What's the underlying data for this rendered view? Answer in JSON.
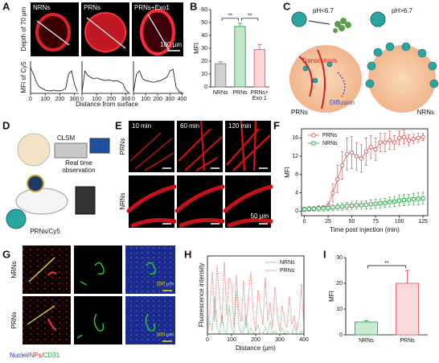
{
  "panel_labels": [
    "A",
    "B",
    "C",
    "D",
    "E",
    "F",
    "G",
    "H",
    "I"
  ],
  "A": {
    "images": [
      "NRNs",
      "PRNs",
      "PRNs+Exo1"
    ],
    "scale": "100 μm",
    "depth": "Depth of 70 μm",
    "ylabel": "MFI of Cy5",
    "xlabel": "Distance from surface"
  },
  "C": {
    "ph_left": "pH<6.7",
    "ph_right": "pH>6.7",
    "transcytosis": "Transcytosis",
    "diffusion": "Diffusion",
    "left": "PRNs",
    "right": "NRNs"
  },
  "D": {
    "microscope": "CLSM",
    "observation": "Real time\nobservation",
    "probe": "PRNs/Cy5"
  },
  "E": {
    "times": [
      "10 min",
      "60 min",
      "120 min"
    ],
    "rows": [
      "PRNs",
      "NRNs"
    ],
    "scale": "50 μm"
  },
  "G": {
    "rows": [
      "NRNs",
      "PRNs"
    ],
    "scale": "100 μm",
    "channels": [
      "Nuclei/",
      "NPs/",
      "CD31"
    ]
  },
  "chart_data": [
    {
      "type": "line",
      "frame": "axes",
      "color": "#111111",
      "xlim": [
        0,
        330
      ],
      "ylim": [
        0,
        100
      ],
      "xticks": [
        0,
        100,
        200,
        300
      ],
      "x": [
        0,
        20,
        40,
        60,
        80,
        100,
        120,
        140,
        160,
        180,
        200,
        220,
        240,
        260,
        280,
        300,
        320
      ],
      "values": [
        80,
        60,
        35,
        20,
        15,
        10,
        8,
        8,
        10,
        8,
        8,
        10,
        15,
        60,
        70,
        30,
        5
      ]
    },
    {
      "type": "line",
      "frame": "axes",
      "color": "#111111",
      "xlim": [
        0,
        330
      ],
      "ylim": [
        0,
        100
      ],
      "xticks": [
        0,
        100,
        200,
        300
      ],
      "x": [
        0,
        20,
        40,
        60,
        80,
        100,
        120,
        140,
        160,
        180,
        200,
        220,
        240,
        260,
        280,
        300,
        320
      ],
      "values": [
        5,
        70,
        55,
        50,
        45,
        48,
        45,
        42,
        40,
        42,
        40,
        38,
        40,
        35,
        30,
        10,
        2
      ]
    },
    {
      "type": "line",
      "frame": "axes",
      "color": "#111111",
      "xlim": [
        0,
        410
      ],
      "ylim": [
        0,
        100
      ],
      "xticks": [
        0,
        100,
        200,
        300,
        400
      ],
      "x": [
        0,
        25,
        50,
        75,
        100,
        125,
        150,
        175,
        200,
        225,
        250,
        275,
        300,
        325,
        350,
        375,
        400
      ],
      "values": [
        5,
        60,
        70,
        45,
        40,
        38,
        35,
        35,
        38,
        40,
        45,
        50,
        70,
        75,
        20,
        5,
        2
      ]
    },
    {
      "type": "bar",
      "frame": "axes",
      "categories": [
        "NRNs",
        "PRNs",
        "PRNs+\nExo 1"
      ],
      "values": [
        18,
        47,
        29
      ],
      "errors": [
        1.5,
        2.5,
        4
      ],
      "colors": [
        "#d0d0d0",
        "#bfe6c8",
        "#fbd6d6"
      ],
      "edge_colors": [
        "#808080",
        "#3aa655",
        "#e06070"
      ],
      "ylim": [
        0,
        60
      ],
      "yticks": [
        0,
        10,
        20,
        30,
        40,
        50,
        60
      ],
      "ylabel": "MFI",
      "annotations": [
        {
          "text": "**",
          "from": 0,
          "to": 1
        },
        {
          "text": "**",
          "from": 1,
          "to": 2
        }
      ]
    },
    {
      "type": "line",
      "frame": "box",
      "xlim": [
        -3,
        130
      ],
      "ylim": [
        -1,
        18
      ],
      "xticks": [
        0,
        25,
        50,
        75,
        100,
        125
      ],
      "yticks": [
        0,
        4,
        8,
        12,
        16
      ],
      "xlabel": "Time post injection (min)",
      "ylabel": "MFI",
      "legend": "upper left",
      "x": [
        0,
        5,
        10,
        15,
        20,
        25,
        30,
        35,
        40,
        45,
        50,
        55,
        60,
        65,
        70,
        75,
        80,
        85,
        90,
        95,
        100,
        105,
        110,
        115,
        120,
        125
      ],
      "series": [
        {
          "name": "PRNs",
          "color": "#d9534f",
          "marker": "circle",
          "values": [
            0.5,
            0.5,
            0.6,
            0.7,
            0.8,
            1.2,
            4,
            7,
            10,
            12.5,
            12.8,
            12,
            11.5,
            13,
            14,
            13.5,
            15,
            15,
            15.5,
            15,
            16,
            16.2,
            15.5,
            15.8,
            16,
            16.2
          ],
          "errors": [
            0.3,
            0.3,
            0.3,
            0.4,
            0.4,
            0.8,
            2,
            3,
            3,
            3.5,
            3.5,
            3,
            3,
            3,
            2.5,
            2.5,
            2,
            2,
            2,
            1.5,
            1.5,
            1.5,
            1.2,
            1,
            1,
            0.8
          ]
        },
        {
          "name": "NRNs",
          "color": "#3aa655",
          "marker": "square",
          "values": [
            0.4,
            0.5,
            0.5,
            0.6,
            0.6,
            0.7,
            0.8,
            0.9,
            1,
            1.1,
            1.2,
            1.3,
            1.3,
            1.4,
            1.5,
            1.6,
            1.7,
            1.8,
            2,
            2.1,
            2.3,
            2.4,
            2.5,
            2.6,
            2.7,
            2.8
          ],
          "errors": [
            0.5,
            0.5,
            0.5,
            0.6,
            0.6,
            0.6,
            0.7,
            0.7,
            0.8,
            0.8,
            0.8,
            0.9,
            0.9,
            0.9,
            1,
            1,
            1,
            1,
            1.1,
            1.1,
            1.2,
            1.2,
            1.2,
            1.3,
            1.3,
            1.3
          ]
        }
      ]
    },
    {
      "type": "line",
      "frame": "box",
      "xlim": [
        0,
        400
      ],
      "ylim": [
        0,
        125
      ],
      "xticks": [
        0,
        100,
        200,
        300,
        400
      ],
      "xlabel": "Distance (μm)",
      "ylabel": "Fluorescence intensity",
      "legend": "upper right",
      "x": [
        0,
        10,
        20,
        30,
        40,
        50,
        60,
        70,
        80,
        90,
        100,
        110,
        120,
        130,
        140,
        150,
        160,
        170,
        180,
        190,
        200,
        210,
        220,
        230,
        240,
        250,
        260,
        270,
        280,
        290,
        300,
        310,
        320,
        330,
        340,
        350,
        360,
        370,
        380,
        390,
        400
      ],
      "series": [
        {
          "name": "NRNs",
          "color": "#3aa655",
          "dash": "dotted",
          "values": [
            0,
            20,
            5,
            60,
            10,
            0,
            30,
            5,
            0,
            45,
            10,
            0,
            70,
            15,
            0,
            5,
            30,
            0,
            10,
            0,
            5,
            15,
            0,
            0,
            10,
            0,
            20,
            0,
            5,
            0,
            0,
            10,
            0,
            5,
            0,
            0,
            15,
            0,
            0,
            5,
            0
          ]
        },
        {
          "name": "PRNs",
          "color": "#d9534f",
          "dash": "dotted",
          "values": [
            5,
            40,
            100,
            20,
            110,
            60,
            15,
            115,
            30,
            90,
            80,
            10,
            95,
            40,
            20,
            85,
            10,
            60,
            100,
            30,
            5,
            70,
            40,
            15,
            90,
            20,
            50,
            10,
            75,
            30,
            5,
            45,
            20,
            10,
            60,
            15,
            30,
            5,
            25,
            80,
            10
          ]
        }
      ]
    },
    {
      "type": "bar",
      "frame": "axes",
      "categories": [
        "NRNs",
        "PRNs"
      ],
      "values": [
        5,
        20
      ],
      "errors": [
        0.5,
        5
      ],
      "colors": [
        "#c8ecd0",
        "#fadada"
      ],
      "edge_colors": [
        "#3aa655",
        "#e06070"
      ],
      "ylim": [
        0,
        30
      ],
      "yticks": [
        0,
        10,
        20,
        30
      ],
      "ylabel": "MFI",
      "annotations": [
        {
          "text": "**",
          "from": 0,
          "to": 1
        }
      ]
    }
  ]
}
